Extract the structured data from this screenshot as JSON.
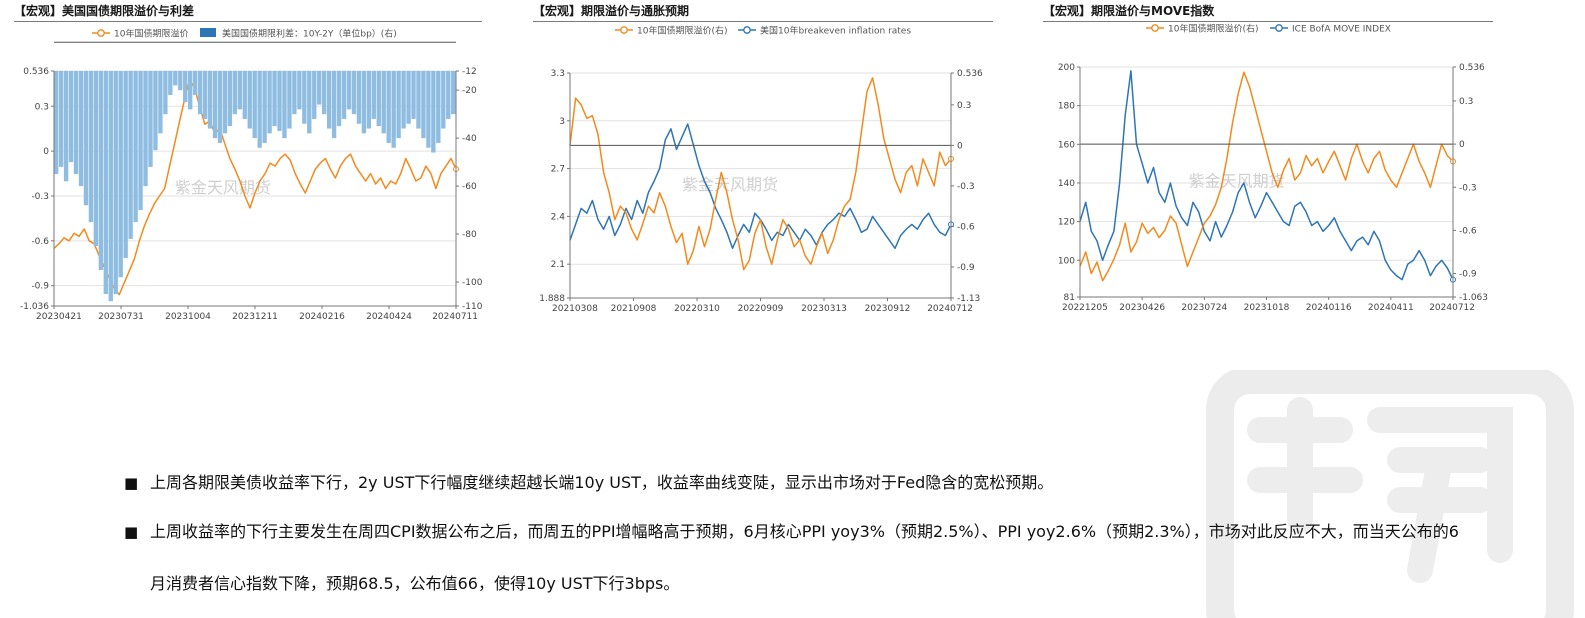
{
  "charts": [
    {
      "title": "【宏观】美国国债期限溢价与利差",
      "legend": [
        {
          "label": "10年国债期限溢价",
          "color": "#f28a1d",
          "kind": "line"
        },
        {
          "label": "美国国债期限利差：10Y-2Y（单位bp）(右)",
          "color": "#2e75b6",
          "kind": "bar"
        }
      ],
      "watermark": "紫金天风期货"
    },
    {
      "title": "【宏观】期限溢价与通胀预期",
      "legend": [
        {
          "label": "10年国债期限溢价(右)",
          "color": "#f28a1d",
          "kind": "line"
        },
        {
          "label": "美国10年breakeven inflation rates",
          "color": "#2e75b6",
          "kind": "line"
        }
      ],
      "watermark": "紫金天风期货"
    },
    {
      "title": "【宏观】期限溢价与MOVE指数",
      "legend": [
        {
          "label": "10年国债期限溢价(右)",
          "color": "#f28a1d",
          "kind": "line"
        },
        {
          "label": "ICE BofA MOVE INDEX",
          "color": "#2e75b6",
          "kind": "line"
        }
      ],
      "watermark": "紫金天风期货"
    }
  ],
  "chart_data": [
    {
      "type": "bar",
      "x_ticks": [
        "20230421",
        "20230731",
        "20231004",
        "20231211",
        "20240216",
        "20240424",
        "20240711"
      ],
      "y_left_ticks": [
        "0.536",
        "0.3",
        "0",
        "-0.3",
        "-0.6",
        "-0.9",
        "-1.036"
      ],
      "y_left_range": [
        -1.036,
        0.536
      ],
      "y_right_ticks": [
        "-12",
        "-20",
        "-40",
        "-60",
        "-80",
        "-100",
        "-110"
      ],
      "y_right_range": [
        -110,
        -12
      ],
      "series": [
        {
          "name": "10年国债期限溢价",
          "axis": "left",
          "type": "line",
          "values": [
            -0.65,
            -0.62,
            -0.58,
            -0.6,
            -0.55,
            -0.57,
            -0.52,
            -0.6,
            -0.62,
            -0.7,
            -0.78,
            -0.85,
            -0.92,
            -0.96,
            -0.88,
            -0.8,
            -0.72,
            -0.6,
            -0.5,
            -0.42,
            -0.35,
            -0.3,
            -0.25,
            -0.1,
            0.05,
            0.2,
            0.35,
            0.48,
            0.42,
            0.3,
            0.18,
            0.2,
            0.12,
            0.15,
            0.05,
            -0.05,
            -0.12,
            -0.2,
            -0.3,
            -0.38,
            -0.28,
            -0.2,
            -0.15,
            -0.08,
            -0.1,
            -0.05,
            -0.02,
            -0.06,
            -0.15,
            -0.22,
            -0.28,
            -0.2,
            -0.12,
            -0.08,
            -0.05,
            -0.12,
            -0.18,
            -0.1,
            -0.05,
            -0.02,
            -0.1,
            -0.15,
            -0.2,
            -0.15,
            -0.22,
            -0.18,
            -0.25,
            -0.2,
            -0.22,
            -0.15,
            -0.05,
            -0.12,
            -0.2,
            -0.18,
            -0.1,
            -0.15,
            -0.25,
            -0.15,
            -0.1,
            -0.05,
            -0.12
          ]
        },
        {
          "name": "美国国债期限利差：10Y-2Y（单位bp）(右)",
          "axis": "right",
          "type": "bar",
          "values": [
            -55,
            -52,
            -58,
            -50,
            -55,
            -60,
            -68,
            -75,
            -85,
            -95,
            -105,
            -108,
            -105,
            -98,
            -90,
            -82,
            -75,
            -70,
            -60,
            -52,
            -45,
            -38,
            -30,
            -22,
            -18,
            -20,
            -25,
            -28,
            -22,
            -30,
            -32,
            -36,
            -40,
            -42,
            -38,
            -35,
            -30,
            -28,
            -32,
            -36,
            -40,
            -44,
            -42,
            -38,
            -35,
            -37,
            -40,
            -36,
            -30,
            -28,
            -34,
            -38,
            -32,
            -26,
            -30,
            -36,
            -40,
            -35,
            -32,
            -28,
            -30,
            -34,
            -38,
            -36,
            -32,
            -35,
            -38,
            -42,
            -44,
            -40,
            -36,
            -34,
            -32,
            -36,
            -40,
            -44,
            -46,
            -42,
            -36,
            -32,
            -30
          ]
        }
      ]
    },
    {
      "type": "line",
      "x_ticks": [
        "20210308",
        "20210908",
        "20220310",
        "20220909",
        "20230313",
        "20230912",
        "20240712"
      ],
      "y_left_ticks": [
        "3.3",
        "3",
        "2.7",
        "2.4",
        "2.1",
        "1.888"
      ],
      "y_left_range": [
        1.888,
        3.3
      ],
      "y_right_ticks": [
        "0.536",
        "0.3",
        "0",
        "-0.3",
        "-0.6",
        "-0.9",
        "-1.13"
      ],
      "y_right_range": [
        -1.13,
        0.536
      ],
      "series": [
        {
          "name": "美国10年breakeven inflation rates",
          "axis": "left",
          "type": "line",
          "values": [
            2.25,
            2.35,
            2.45,
            2.42,
            2.5,
            2.38,
            2.32,
            2.4,
            2.28,
            2.35,
            2.45,
            2.38,
            2.5,
            2.42,
            2.55,
            2.62,
            2.7,
            2.88,
            2.95,
            2.82,
            2.9,
            2.98,
            2.85,
            2.72,
            2.62,
            2.55,
            2.45,
            2.38,
            2.3,
            2.2,
            2.28,
            2.35,
            2.3,
            2.42,
            2.38,
            2.32,
            2.25,
            2.3,
            2.28,
            2.35,
            2.3,
            2.25,
            2.32,
            2.28,
            2.22,
            2.3,
            2.35,
            2.38,
            2.42,
            2.4,
            2.45,
            2.38,
            2.3,
            2.32,
            2.4,
            2.35,
            2.3,
            2.25,
            2.2,
            2.28,
            2.32,
            2.35,
            2.32,
            2.38,
            2.42,
            2.35,
            2.3,
            2.28,
            2.35
          ]
        },
        {
          "name": "10年国债期限溢价(右)",
          "axis": "right",
          "type": "line",
          "values": [
            0.0,
            0.35,
            0.3,
            0.2,
            0.22,
            0.08,
            -0.2,
            -0.35,
            -0.55,
            -0.45,
            -0.5,
            -0.62,
            -0.7,
            -0.58,
            -0.45,
            -0.5,
            -0.35,
            -0.45,
            -0.6,
            -0.72,
            -0.65,
            -0.88,
            -0.78,
            -0.6,
            -0.75,
            -0.62,
            -0.4,
            -0.2,
            -0.35,
            -0.55,
            -0.7,
            -0.92,
            -0.85,
            -0.65,
            -0.55,
            -0.75,
            -0.88,
            -0.7,
            -0.55,
            -0.62,
            -0.75,
            -0.7,
            -0.82,
            -0.88,
            -0.75,
            -0.65,
            -0.8,
            -0.7,
            -0.55,
            -0.45,
            -0.4,
            -0.2,
            0.1,
            0.4,
            0.5,
            0.3,
            0.05,
            -0.1,
            -0.25,
            -0.35,
            -0.2,
            -0.15,
            -0.3,
            -0.1,
            -0.2,
            -0.3,
            -0.05,
            -0.15,
            -0.1
          ]
        }
      ]
    },
    {
      "type": "line",
      "x_ticks": [
        "20221205",
        "20230426",
        "20230724",
        "20231018",
        "20240116",
        "20240411",
        "20240712"
      ],
      "y_left_ticks": [
        "200",
        "180",
        "160",
        "140",
        "120",
        "100",
        "81"
      ],
      "y_left_range": [
        81,
        200
      ],
      "y_right_ticks": [
        "0.536",
        "0.3",
        "0",
        "-0.3",
        "-0.6",
        "-0.9",
        "-1.063"
      ],
      "y_right_range": [
        -1.063,
        0.536
      ],
      "series": [
        {
          "name": "ICE BofA MOVE INDEX",
          "axis": "left",
          "type": "line",
          "values": [
            120,
            130,
            115,
            110,
            100,
            108,
            115,
            140,
            175,
            198,
            160,
            150,
            140,
            148,
            135,
            130,
            140,
            128,
            122,
            118,
            130,
            125,
            115,
            110,
            120,
            112,
            118,
            125,
            135,
            140,
            130,
            122,
            128,
            135,
            130,
            125,
            120,
            118,
            128,
            130,
            125,
            118,
            120,
            115,
            118,
            122,
            115,
            110,
            105,
            110,
            112,
            108,
            115,
            110,
            100,
            95,
            92,
            90,
            98,
            100,
            105,
            100,
            92,
            97,
            100,
            96,
            90
          ]
        },
        {
          "name": "10年国债期限溢价(右)",
          "axis": "right",
          "type": "line",
          "values": [
            -0.85,
            -0.75,
            -0.9,
            -0.82,
            -0.95,
            -0.88,
            -0.8,
            -0.7,
            -0.55,
            -0.75,
            -0.68,
            -0.55,
            -0.62,
            -0.58,
            -0.65,
            -0.6,
            -0.5,
            -0.55,
            -0.7,
            -0.85,
            -0.75,
            -0.65,
            -0.55,
            -0.5,
            -0.42,
            -0.3,
            -0.1,
            0.15,
            0.35,
            0.5,
            0.4,
            0.25,
            0.1,
            -0.05,
            -0.2,
            -0.3,
            -0.18,
            -0.1,
            -0.25,
            -0.2,
            -0.08,
            -0.15,
            -0.1,
            -0.2,
            -0.12,
            -0.05,
            -0.15,
            -0.25,
            -0.1,
            0.0,
            -0.12,
            -0.2,
            -0.1,
            -0.05,
            -0.18,
            -0.25,
            -0.3,
            -0.2,
            -0.1,
            0.0,
            -0.12,
            -0.2,
            -0.3,
            -0.15,
            0.0,
            -0.08,
            -0.12
          ]
        }
      ]
    }
  ],
  "bullets": [
    "上周各期限美债收益率下行，2y UST下行幅度继续超越长端10y UST，收益率曲线变陡，显示出市场对于Fed隐含的宽松预期。",
    "上周收益率的下行主要发生在周四CPI数据公布之后，而周五的PPI增幅略高于预期，6月核心PPI yoy3%（预期2.5%）、PPI yoy2.6%（预期2.3%），市场对此反应不大，而当天公布的6月消费者信心指数下降，预期68.5，公布值66，使得10y UST下行3bps。"
  ],
  "bullet_symbol": "■"
}
